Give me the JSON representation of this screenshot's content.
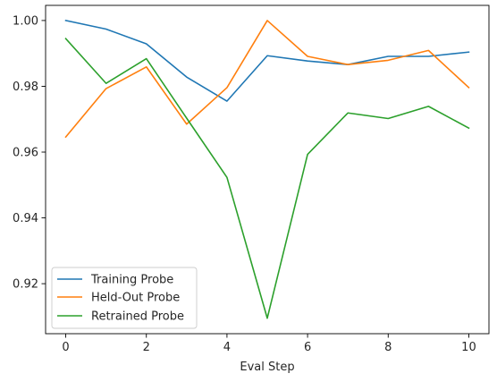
{
  "chart_data": {
    "type": "line",
    "xlabel": "Eval Step",
    "ylabel": "",
    "x": [
      0,
      1,
      2,
      3,
      4,
      5,
      6,
      7,
      8,
      9,
      10
    ],
    "xlim": [
      -0.5,
      10.5
    ],
    "ylim": [
      0.9048,
      1.0046
    ],
    "xticks": [
      0,
      2,
      4,
      6,
      8,
      10
    ],
    "yticks": [
      0.92,
      0.94,
      0.96,
      0.98,
      1.0
    ],
    "xtick_labels": [
      "0",
      "2",
      "4",
      "6",
      "8",
      "10"
    ],
    "ytick_labels": [
      "0.92",
      "0.94",
      "0.96",
      "0.98",
      "1.00"
    ],
    "grid": false,
    "legend_position": "lower-left",
    "series": [
      {
        "name": "Training Probe",
        "color": "#1f77b4",
        "values": [
          1.0,
          0.9974,
          0.9929,
          0.9828,
          0.9755,
          0.9893,
          0.9877,
          0.9866,
          0.9891,
          0.9891,
          0.9904
        ]
      },
      {
        "name": "Held-Out Probe",
        "color": "#ff7f0e",
        "values": [
          0.9646,
          0.9793,
          0.9859,
          0.9685,
          0.9796,
          1.0,
          0.9891,
          0.9866,
          0.9879,
          0.9909,
          0.9796
        ]
      },
      {
        "name": "Retrained Probe",
        "color": "#2ca02c",
        "values": [
          0.9945,
          0.9809,
          0.9884,
          0.9703,
          0.9523,
          0.9095,
          0.9593,
          0.9719,
          0.9702,
          0.9739,
          0.9673
        ]
      }
    ]
  }
}
